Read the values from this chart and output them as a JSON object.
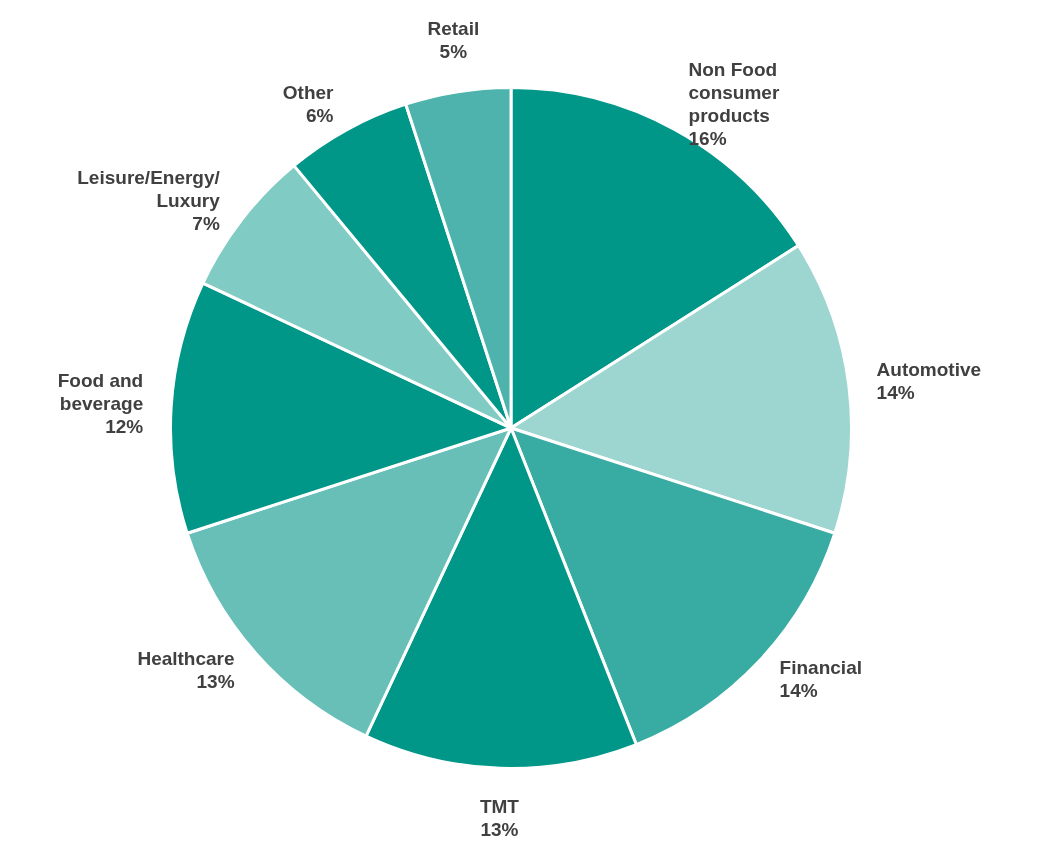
{
  "chart_data": {
    "type": "pie",
    "categories": [
      "Non Food consumer products",
      "Automotive",
      "Financial",
      "TMT",
      "Healthcare",
      "Food and beverage",
      "Leisure/Energy/Luxury",
      "Other",
      "Retail"
    ],
    "values": [
      16,
      14,
      14,
      13,
      13,
      12,
      7,
      6,
      5
    ],
    "value_labels": [
      "16%",
      "14%",
      "14%",
      "13%",
      "13%",
      "12%",
      "7%",
      "6%",
      "5%"
    ],
    "colors": [
      "#009688",
      "#9dd5d0",
      "#38aba3",
      "#009688",
      "#67bfb7",
      "#009688",
      "#80cbc4",
      "#009688",
      "#4db3ac"
    ]
  }
}
